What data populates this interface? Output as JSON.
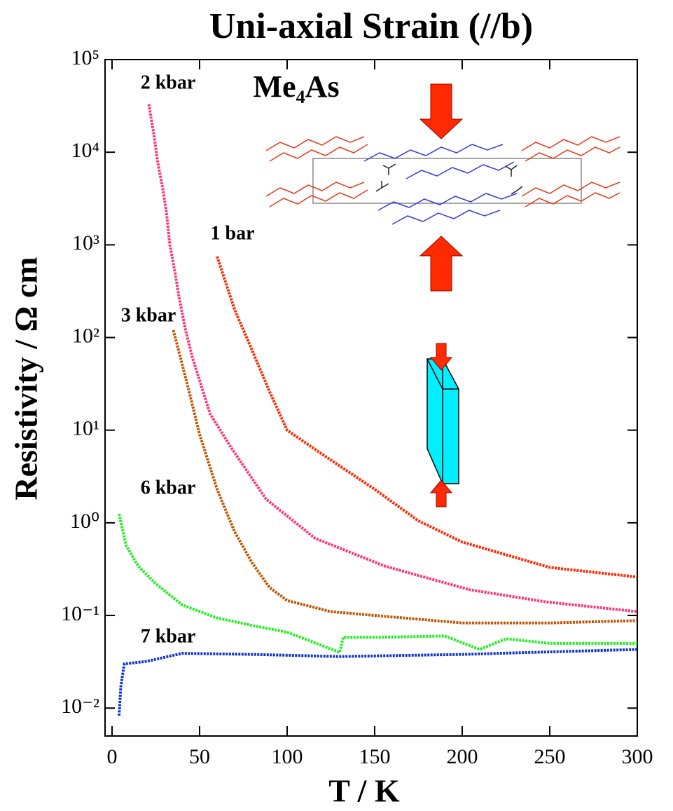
{
  "chart_data": {
    "type": "line",
    "title": "Uni-axial Strain (//b)",
    "x_label": "T / K",
    "y_label": "Resistivity / Ω cm",
    "annotations": [
      "2 kbar",
      "1 bar",
      "3 kbar",
      "6 kbar",
      "7 kbar",
      "Me₄As"
    ],
    "log_y": true,
    "xlim": [
      -4,
      300
    ],
    "xticks": [
      0,
      50,
      100,
      150,
      200,
      250,
      300
    ],
    "ylim": [
      0.005,
      100000
    ],
    "yticks": [
      {
        "value": 0.01,
        "label": "10⁻²"
      },
      {
        "value": 0.1,
        "label": "10⁻¹"
      },
      {
        "value": 1,
        "label": "10⁰"
      },
      {
        "value": 10,
        "label": "10¹"
      },
      {
        "value": 100,
        "label": "10²"
      },
      {
        "value": 1000,
        "label": "10³"
      },
      {
        "value": 10000,
        "label": "10⁴"
      },
      {
        "value": 100000,
        "label": "10⁵"
      }
    ],
    "series": [
      {
        "name": "1 bar",
        "color": "#ff2a00",
        "x": [
          60,
          70,
          80,
          90,
          100,
          120,
          150,
          175,
          200,
          250,
          300
        ],
        "values": [
          750,
          200,
          73,
          26,
          10,
          5.5,
          2.3,
          1.05,
          0.62,
          0.33,
          0.26
        ]
      },
      {
        "name": "2 kbar",
        "color": "#ff3377",
        "x": [
          21,
          24,
          26,
          29,
          31,
          33,
          36,
          38,
          42,
          46,
          56,
          68,
          88,
          116,
          156,
          204,
          248,
          300
        ],
        "values": [
          33000,
          15000,
          8000,
          4000,
          2300,
          1000,
          500,
          290,
          120,
          60,
          15,
          6.5,
          1.8,
          0.68,
          0.34,
          0.19,
          0.14,
          0.11
        ]
      },
      {
        "name": "3 kbar",
        "color": "#c05500",
        "x": [
          35,
          40,
          45,
          50,
          60,
          70,
          80,
          90,
          100,
          125,
          150,
          200,
          250,
          300
        ],
        "values": [
          120,
          52,
          22,
          9,
          2.3,
          0.8,
          0.37,
          0.2,
          0.145,
          0.11,
          0.1,
          0.083,
          0.083,
          0.088
        ]
      },
      {
        "name": "6 kbar",
        "color": "#22ee22",
        "x": [
          4,
          8,
          15,
          25,
          40,
          60,
          80,
          100,
          130,
          132,
          150,
          190,
          210,
          225,
          250,
          300
        ],
        "values": [
          1.25,
          0.57,
          0.34,
          0.22,
          0.13,
          0.094,
          0.078,
          0.066,
          0.04,
          0.058,
          0.058,
          0.06,
          0.043,
          0.056,
          0.05,
          0.05
        ]
      },
      {
        "name": "7 kbar",
        "color": "#1133cc",
        "x": [
          4,
          5,
          7,
          20,
          40,
          80,
          130,
          200,
          300
        ],
        "values": [
          0.0083,
          0.017,
          0.03,
          0.032,
          0.039,
          0.038,
          0.036,
          0.038,
          0.043
        ]
      }
    ]
  }
}
